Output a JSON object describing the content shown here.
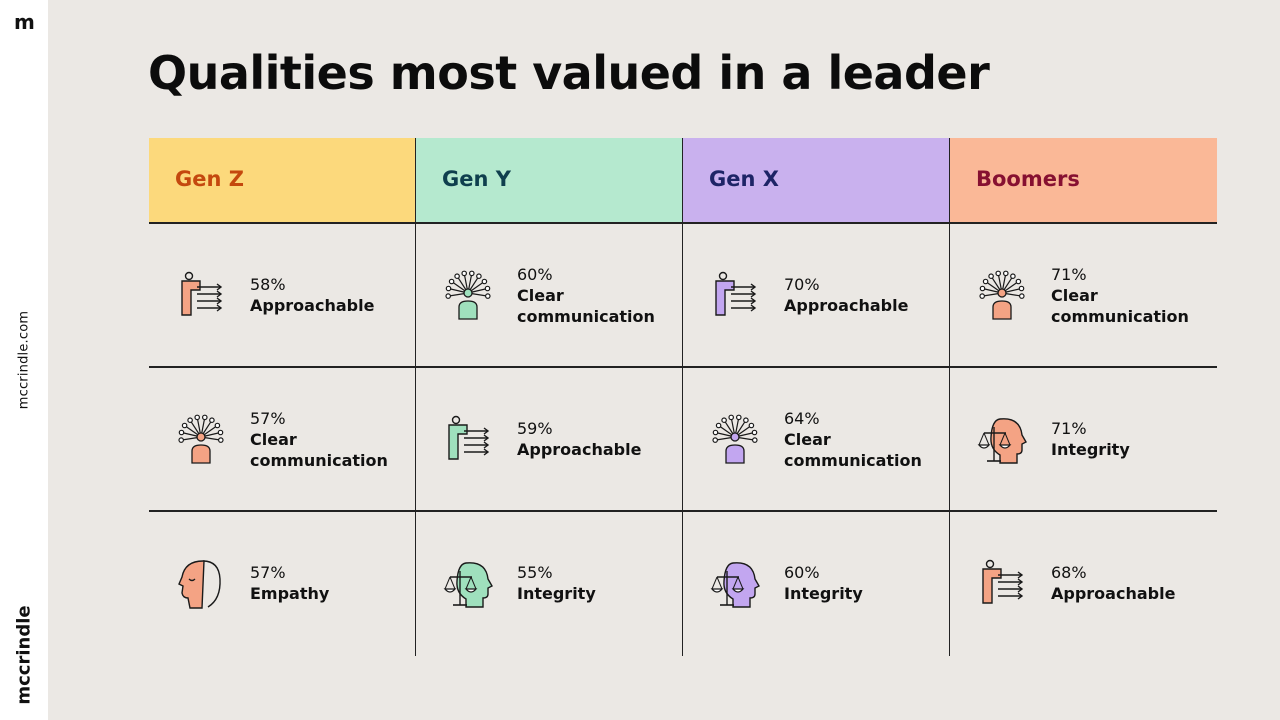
{
  "brand": {
    "mark": "m",
    "url": "mccrindle.com",
    "name": "mccrindle"
  },
  "title": "Qualities most valued in a leader",
  "columns": [
    {
      "label": "Gen Z",
      "header_bg": "#fcd97c",
      "label_color": "#c4480e",
      "accent": "#f4a384",
      "items": [
        {
          "pct": "58%",
          "quality": "Approachable",
          "icon": "approachable-icon"
        },
        {
          "pct": "57%",
          "quality": "Clear communication",
          "icon": "clear-communication-icon"
        },
        {
          "pct": "57%",
          "quality": "Empathy",
          "icon": "empathy-icon"
        }
      ]
    },
    {
      "label": "Gen Y",
      "header_bg": "#b5e9cf",
      "label_color": "#0f3f4e",
      "accent": "#9fe0bd",
      "items": [
        {
          "pct": "60%",
          "quality": "Clear communication",
          "icon": "clear-communication-icon"
        },
        {
          "pct": "59%",
          "quality": "Approachable",
          "icon": "approachable-icon"
        },
        {
          "pct": "55%",
          "quality": "Integrity",
          "icon": "integrity-icon"
        }
      ]
    },
    {
      "label": "Gen X",
      "header_bg": "#c9b1ee",
      "label_color": "#1d2466",
      "accent": "#c2a6f0",
      "items": [
        {
          "pct": "70%",
          "quality": "Approachable",
          "icon": "approachable-icon"
        },
        {
          "pct": "64%",
          "quality": "Clear communication",
          "icon": "clear-communication-icon"
        },
        {
          "pct": "60%",
          "quality": "Integrity",
          "icon": "integrity-icon"
        }
      ]
    },
    {
      "label": "Boomers",
      "header_bg": "#fab897",
      "label_color": "#861031",
      "accent": "#f4a384",
      "items": [
        {
          "pct": "71%",
          "quality": "Clear communication",
          "icon": "clear-communication-icon"
        },
        {
          "pct": "71%",
          "quality": "Integrity",
          "icon": "integrity-icon"
        },
        {
          "pct": "68%",
          "quality": "Approachable",
          "icon": "approachable-icon"
        }
      ]
    }
  ]
}
